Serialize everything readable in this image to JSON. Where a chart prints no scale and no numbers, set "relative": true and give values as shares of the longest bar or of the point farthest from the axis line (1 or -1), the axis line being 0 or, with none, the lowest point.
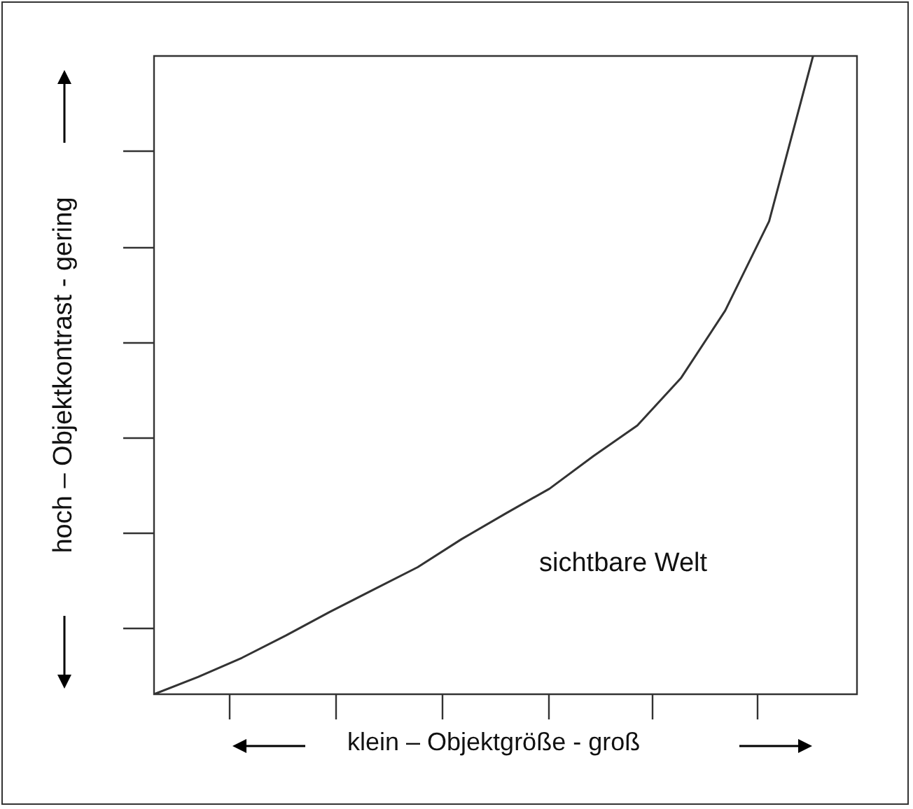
{
  "chart_data": {
    "type": "line",
    "relative": true,
    "xlabel": "klein – Objektgröße - groß",
    "ylabel": "hoch – Objektkontrast - gering",
    "annotations": [
      "sichtbare Welt"
    ],
    "categories": [
      null,
      null,
      null,
      null,
      null,
      null,
      null,
      null,
      null,
      null,
      null,
      null,
      null,
      null,
      null,
      null,
      null
    ],
    "series": [
      {
        "color": "#333333",
        "values": [
          0,
          0.027,
          0.057,
          0.092,
          0.129,
          0.164,
          0.199,
          0.243,
          0.283,
          0.322,
          0.373,
          0.421,
          0.496,
          0.601,
          0.741,
          1,
          null
        ]
      }
    ],
    "marker": "none",
    "line_style": "solid",
    "legend": false
  }
}
